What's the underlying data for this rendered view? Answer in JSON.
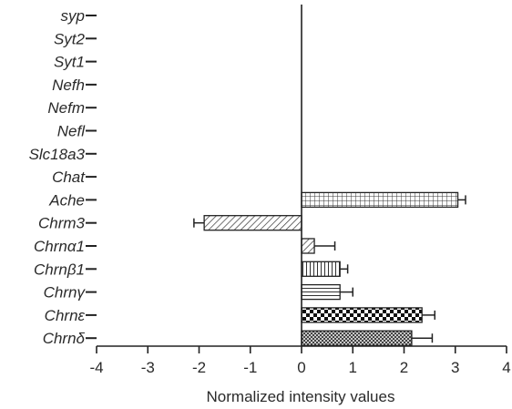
{
  "chart_data": {
    "type": "bar",
    "orientation": "horizontal",
    "categories": [
      "syp",
      "Syt2",
      "Syt1",
      "Nefh",
      "Nefm",
      "Nefl",
      "Slc18a3",
      "Chat",
      "Ache",
      "Chrm3",
      "Chrnα1",
      "Chrnβ1",
      "Chrnγ",
      "Chrnε",
      "Chrnδ"
    ],
    "values": [
      0,
      0,
      0,
      0,
      0,
      0,
      0,
      0,
      3.05,
      -1.9,
      0.25,
      0.75,
      0.75,
      2.35,
      2.15
    ],
    "errors": [
      0,
      0,
      0,
      0,
      0,
      0,
      0,
      0,
      0.15,
      0.2,
      0.4,
      0.15,
      0.25,
      0.25,
      0.4
    ],
    "patterns": [
      "none",
      "none",
      "none",
      "none",
      "none",
      "none",
      "none",
      "none",
      "grid",
      "diagonal",
      "diagonal",
      "vertical",
      "horizontal",
      "checker",
      "crosshatch"
    ],
    "xlabel": "Normalized intensity values",
    "xlim": [
      -4,
      4
    ],
    "xticks": [
      "-4",
      "-3",
      "-2",
      "-1",
      "0",
      "1",
      "2",
      "3",
      "4"
    ],
    "grid": false,
    "legend": "none"
  }
}
